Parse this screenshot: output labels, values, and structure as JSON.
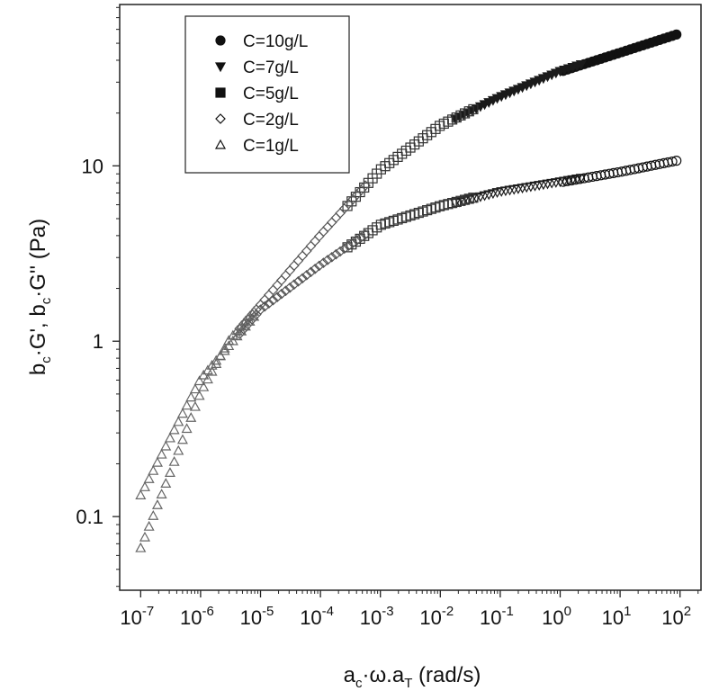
{
  "chart_data": {
    "type": "scatter",
    "title": "",
    "xlabel": {
      "base": "a",
      "sub1": "c",
      "mid": "·ω.a",
      "sub2": "T",
      "unit": " (rad/s)"
    },
    "ylabel": {
      "p1": "b",
      "s1": "c",
      "p2": "·G', b",
      "s2": "c",
      "p3": "·G'' (Pa)"
    },
    "xscale": "log",
    "yscale": "log",
    "xlim_exp": [
      -7.35,
      2.35
    ],
    "ylim_exp": [
      -1.42,
      1.92
    ],
    "x_ticks": [
      {
        "base": "10",
        "exp": "-7"
      },
      {
        "base": "10",
        "exp": "-6"
      },
      {
        "base": "10",
        "exp": "-5"
      },
      {
        "base": "10",
        "exp": "-4"
      },
      {
        "base": "10",
        "exp": "-3"
      },
      {
        "base": "10",
        "exp": "-2"
      },
      {
        "base": "10",
        "exp": "-1"
      },
      {
        "base": "10",
        "exp": "0"
      },
      {
        "base": "10",
        "exp": "1"
      },
      {
        "base": "10",
        "exp": "2"
      }
    ],
    "y_ticks": [
      {
        "label": "0.1",
        "value": 0.1
      },
      {
        "label": "1",
        "value": 1
      },
      {
        "label": "10",
        "value": 10
      }
    ],
    "grid": false,
    "legend_position": "top-left",
    "legend": [
      {
        "label": "C=10g/L",
        "marker": "circle",
        "color": "#111111"
      },
      {
        "label": "C=7g/L",
        "marker": "triangle-down",
        "color": "#1a1a1a"
      },
      {
        "label": "C=5g/L",
        "marker": "square",
        "color": "#333333"
      },
      {
        "label": "C=2g/L",
        "marker": "diamond",
        "color": "#555555"
      },
      {
        "label": "C=1g/L",
        "marker": "triangle-up",
        "color": "#666666"
      }
    ],
    "curves": [
      {
        "quantity": "G'",
        "points": [
          [
            1e-07,
            0.065
          ],
          [
            3e-07,
            0.17
          ],
          [
            1e-06,
            0.5
          ],
          [
            3e-06,
            1.0
          ],
          [
            1e-05,
            1.6
          ],
          [
            0.0001,
            4.0
          ],
          [
            0.001,
            9.5
          ],
          [
            0.01,
            17
          ],
          [
            0.1,
            25
          ],
          [
            1,
            35
          ],
          [
            10,
            45
          ],
          [
            100,
            58
          ]
        ]
      },
      {
        "quantity": "G''",
        "points": [
          [
            1e-07,
            0.13
          ],
          [
            1e-06,
            0.6
          ],
          [
            1e-05,
            1.5
          ],
          [
            0.0001,
            2.7
          ],
          [
            0.001,
            4.6
          ],
          [
            0.01,
            5.9
          ],
          [
            0.1,
            7.2
          ],
          [
            1,
            8.2
          ],
          [
            10,
            9.4
          ],
          [
            100,
            11
          ]
        ]
      }
    ]
  }
}
